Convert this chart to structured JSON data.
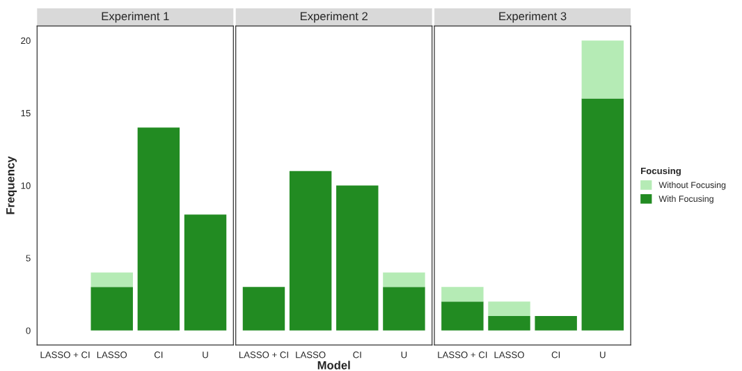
{
  "chart_data": [
    {
      "type": "bar",
      "title": "Experiment 1",
      "ylabel": "Frequency",
      "stacked": true,
      "categories": [
        "LASSO + CI",
        "LASSO",
        "CI",
        "U"
      ],
      "ylim": [
        -1,
        21
      ],
      "yticks": [
        0,
        5,
        10,
        15,
        20
      ],
      "grid": false,
      "series": [
        {
          "color": "#228b22",
          "values": [
            0,
            3,
            14,
            8
          ]
        },
        {
          "color": "#b5ebb5",
          "values": [
            0,
            1,
            0,
            0
          ]
        }
      ]
    },
    {
      "type": "bar",
      "title": "Experiment 2",
      "xlabel": "Model",
      "stacked": true,
      "categories": [
        "LASSO + CI",
        "LASSO",
        "CI",
        "U"
      ],
      "ylim": [
        -1,
        21
      ],
      "tick_labels": "x",
      "grid": false,
      "series": [
        {
          "color": "#228b22",
          "values": [
            3,
            11,
            10,
            3
          ]
        },
        {
          "color": "#b5ebb5",
          "values": [
            0,
            0,
            0,
            1
          ]
        }
      ]
    },
    {
      "type": "bar",
      "title": "Experiment 3",
      "stacked": true,
      "categories": [
        "LASSO + CI",
        "LASSO",
        "CI",
        "U"
      ],
      "ylim": [
        -1,
        21
      ],
      "tick_labels": "x",
      "grid": false,
      "legend": "right",
      "legend_title": "Focusing",
      "series": [
        {
          "name": "With Focusing",
          "color": "#228b22",
          "values": [
            2,
            1,
            1,
            16
          ]
        },
        {
          "name": "Without Focusing",
          "color": "#b5ebb5",
          "values": [
            1,
            1,
            0,
            4
          ]
        }
      ]
    }
  ]
}
